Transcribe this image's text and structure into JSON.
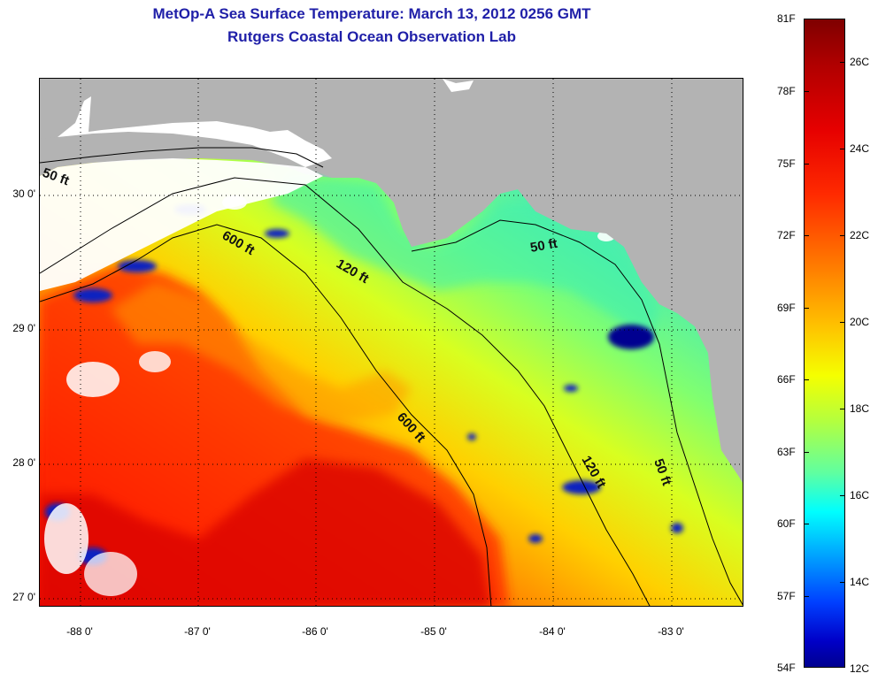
{
  "title": {
    "line1": "MetOp-A Sea Surface Temperature:  March 13, 2012 0256 GMT",
    "line2": "Rutgers Coastal Ocean Observation Lab"
  },
  "map": {
    "lat_labels": [
      "30 0'",
      "29 0'",
      "28 0'",
      "27 0'"
    ],
    "lon_labels": [
      "-88 0'",
      "-87 0'",
      "-86 0'",
      "-85 0'",
      "-84 0'",
      "-83 0'"
    ],
    "contour_labels": [
      "50 ft",
      "600 ft",
      "120 ft",
      "50 ft",
      "600 ft",
      "120 ft",
      "50 ft"
    ],
    "land_color": "#b3b3b3",
    "no_data_color": "#ffffff",
    "grid": "dotted"
  },
  "colorbar": {
    "fahrenheit_labels": [
      "81F",
      "78F",
      "75F",
      "72F",
      "69F",
      "66F",
      "63F",
      "60F",
      "57F",
      "54F"
    ],
    "celsius_labels": [
      "26C",
      "24C",
      "22C",
      "20C",
      "18C",
      "16C",
      "14C",
      "12C"
    ],
    "colormap": "jet",
    "min_c": 12,
    "max_c": 27.2
  }
}
